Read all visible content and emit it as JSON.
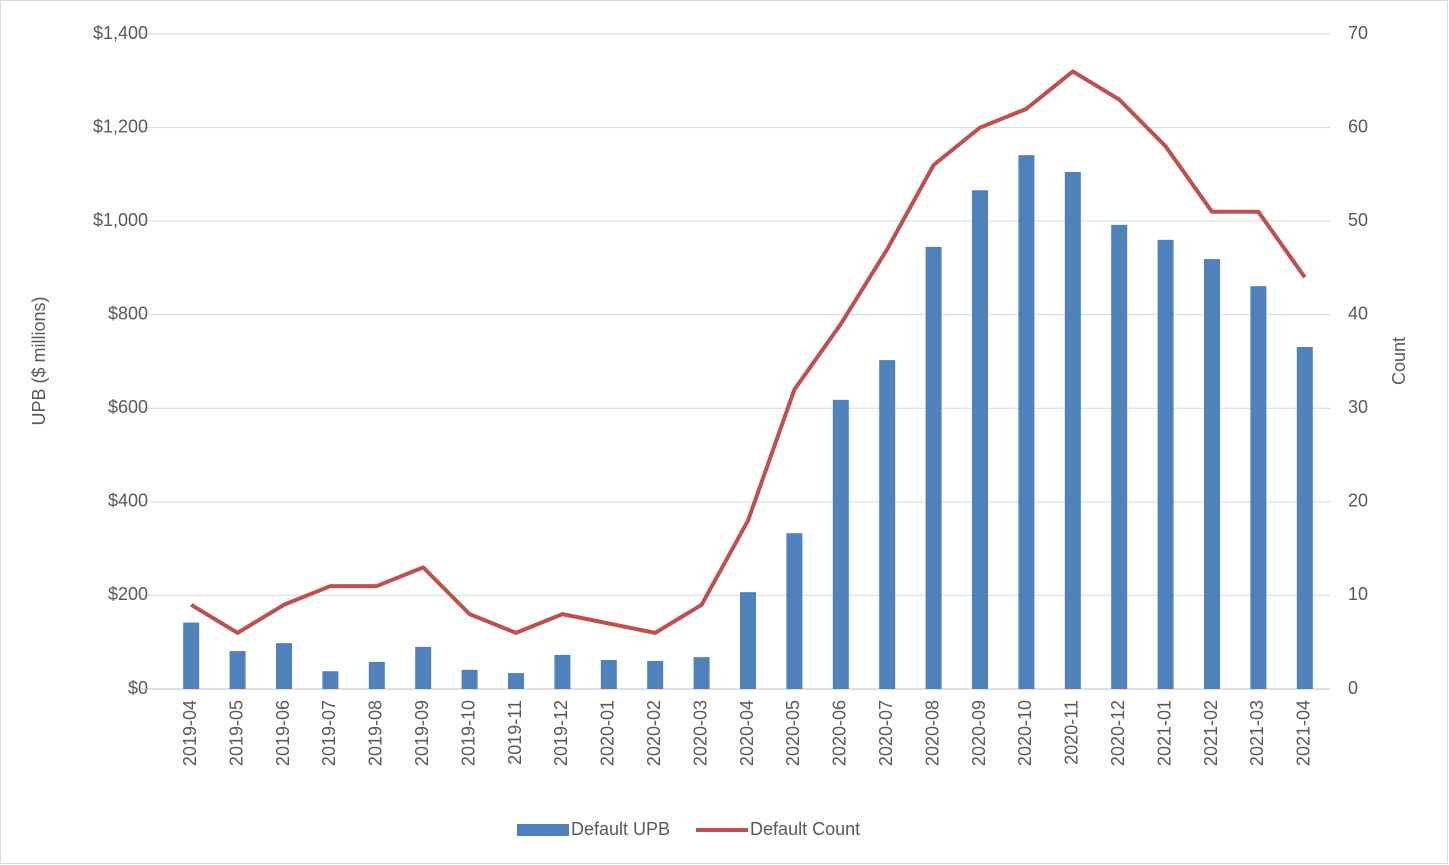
{
  "chart_data": {
    "type": "combo",
    "y_label": "UPB ($ millions)",
    "y2_label": "Count",
    "categories": [
      "2019-04",
      "2019-05",
      "2019-06",
      "2019-07",
      "2019-08",
      "2019-09",
      "2019-10",
      "2019-11",
      "2019-12",
      "2020-01",
      "2020-02",
      "2020-03",
      "2020-04",
      "2020-05",
      "2020-06",
      "2020-07",
      "2020-08",
      "2020-09",
      "2020-10",
      "2020-11",
      "2020-12",
      "2021-01",
      "2021-02",
      "2021-03",
      "2021-04"
    ],
    "series": [
      {
        "name": "Default UPB",
        "type": "bar",
        "color": "#4f81bd",
        "axis": "y",
        "values": [
          142,
          81,
          98,
          38,
          58,
          90,
          41,
          34,
          73,
          62,
          60,
          68,
          207,
          333,
          618,
          703,
          945,
          1066,
          1141,
          1105,
          992,
          960,
          919,
          861,
          731
        ]
      },
      {
        "name": "Default Count",
        "type": "line",
        "color": "#c0504d",
        "axis": "y2",
        "values": [
          9,
          6,
          9,
          11,
          11,
          13,
          8,
          6,
          8,
          7,
          6,
          9,
          18,
          32,
          39,
          47,
          56,
          60,
          62,
          66,
          63,
          58,
          51,
          51,
          44
        ]
      }
    ],
    "ylim": [
      0,
      1400
    ],
    "yticks": [
      {
        "value": 0,
        "label": "$0"
      },
      {
        "value": 200,
        "label": "$200"
      },
      {
        "value": 400,
        "label": "$400"
      },
      {
        "value": 600,
        "label": "$600"
      },
      {
        "value": 800,
        "label": "$800"
      },
      {
        "value": 1000,
        "label": "$1,000"
      },
      {
        "value": 1200,
        "label": "$1,200"
      },
      {
        "value": 1400,
        "label": "$1,400"
      }
    ],
    "y2lim": [
      0,
      70
    ],
    "y2ticks": [
      0,
      10,
      20,
      30,
      40,
      50,
      60,
      70
    ],
    "grid": true,
    "legend": "bottom"
  }
}
